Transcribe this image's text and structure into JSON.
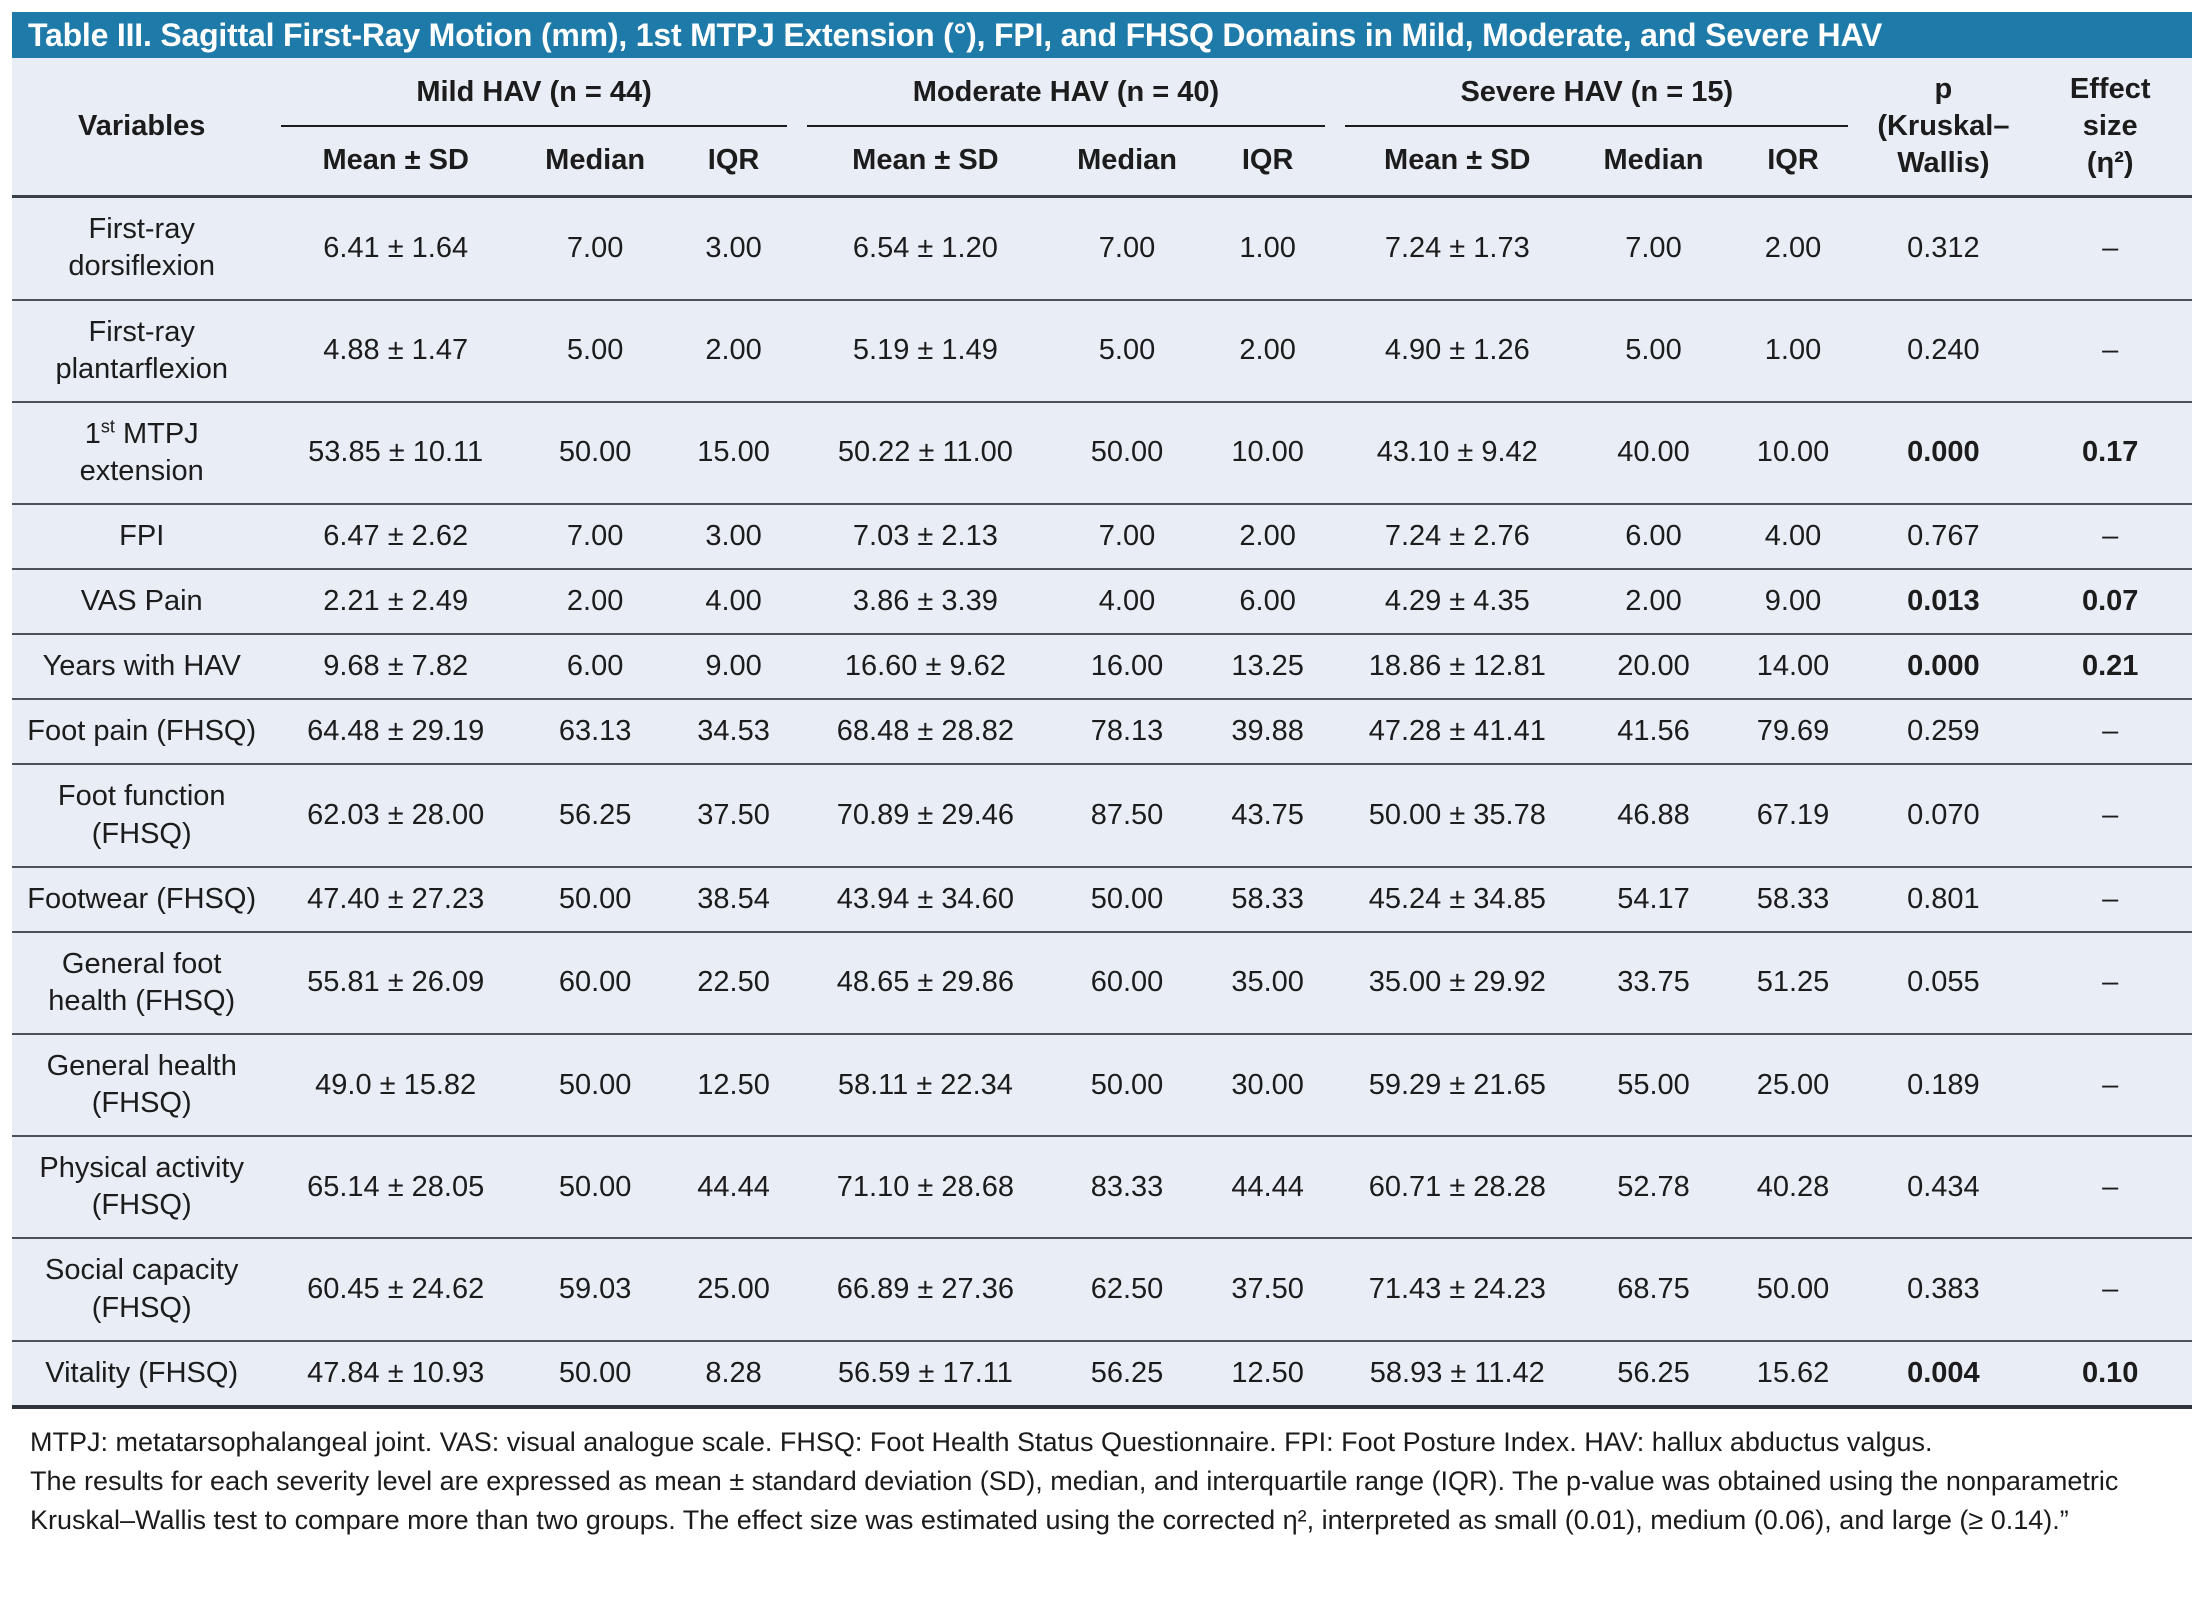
{
  "title": "Table III. Sagittal First-Ray Motion (mm), 1st MTPJ Extension (°), FPI, and FHSQ Domains in Mild, Moderate, and Severe HAV",
  "accent_color": "#1e7aa9",
  "body_background": "#e9edf6",
  "table": {
    "variables_header": "Variables",
    "groups": [
      {
        "label": "Mild HAV (n = 44)"
      },
      {
        "label": "Moderate HAV (n = 40)"
      },
      {
        "label": "Severe HAV (n = 15)"
      }
    ],
    "sub_headers": [
      "Mean ± SD",
      "Median",
      "IQR"
    ],
    "p_header": "p\n(Kruskal–\nWallis)",
    "effect_header": "Effect\nsize\n(η²)",
    "rows": [
      {
        "label": "First-ray dorsiflexion",
        "cells": [
          "6.41 ± 1.64",
          "7.00",
          "3.00",
          "6.54 ± 1.20",
          "7.00",
          "1.00",
          "7.24 ± 1.73",
          "7.00",
          "2.00",
          "0.312",
          "–"
        ],
        "significant": false
      },
      {
        "label": "First-ray plantarflexion",
        "cells": [
          "4.88 ± 1.47",
          "5.00",
          "2.00",
          "5.19 ± 1.49",
          "5.00",
          "2.00",
          "4.90 ± 1.26",
          "5.00",
          "1.00",
          "0.240",
          "–"
        ],
        "significant": false
      },
      {
        "label": "1st MTPJ extension",
        "ordinal_superscript": true,
        "cells": [
          "53.85 ± 10.11",
          "50.00",
          "15.00",
          "50.22 ± 11.00",
          "50.00",
          "10.00",
          "43.10 ± 9.42",
          "40.00",
          "10.00",
          "0.000",
          "0.17"
        ],
        "significant": true
      },
      {
        "label": "FPI",
        "cells": [
          "6.47 ± 2.62",
          "7.00",
          "3.00",
          "7.03 ± 2.13",
          "7.00",
          "2.00",
          "7.24 ± 2.76",
          "6.00",
          "4.00",
          "0.767",
          "–"
        ],
        "significant": false
      },
      {
        "label": "VAS Pain",
        "cells": [
          "2.21 ± 2.49",
          "2.00",
          "4.00",
          "3.86 ± 3.39",
          "4.00",
          "6.00",
          "4.29 ± 4.35",
          "2.00",
          "9.00",
          "0.013",
          "0.07"
        ],
        "significant": true
      },
      {
        "label": "Years with HAV",
        "cells": [
          "9.68 ± 7.82",
          "6.00",
          "9.00",
          "16.60 ± 9.62",
          "16.00",
          "13.25",
          "18.86 ± 12.81",
          "20.00",
          "14.00",
          "0.000",
          "0.21"
        ],
        "significant": true
      },
      {
        "label": "Foot pain (FHSQ)",
        "cells": [
          "64.48 ± 29.19",
          "63.13",
          "34.53",
          "68.48 ± 28.82",
          "78.13",
          "39.88",
          "47.28 ± 41.41",
          "41.56",
          "79.69",
          "0.259",
          "–"
        ],
        "significant": false
      },
      {
        "label": "Foot function (FHSQ)",
        "cells": [
          "62.03 ± 28.00",
          "56.25",
          "37.50",
          "70.89 ± 29.46",
          "87.50",
          "43.75",
          "50.00 ± 35.78",
          "46.88",
          "67.19",
          "0.070",
          "–"
        ],
        "significant": false
      },
      {
        "label": "Footwear (FHSQ)",
        "cells": [
          "47.40 ± 27.23",
          "50.00",
          "38.54",
          "43.94 ± 34.60",
          "50.00",
          "58.33",
          "45.24 ± 34.85",
          "54.17",
          "58.33",
          "0.801",
          "–"
        ],
        "significant": false
      },
      {
        "label": "General foot health (FHSQ)",
        "cells": [
          "55.81 ± 26.09",
          "60.00",
          "22.50",
          "48.65 ± 29.86",
          "60.00",
          "35.00",
          "35.00 ± 29.92",
          "33.75",
          "51.25",
          "0.055",
          "–"
        ],
        "significant": false
      },
      {
        "label": "General health (FHSQ)",
        "cells": [
          "49.0 ± 15.82",
          "50.00",
          "12.50",
          "58.11 ± 22.34",
          "50.00",
          "30.00",
          "59.29 ± 21.65",
          "55.00",
          "25.00",
          "0.189",
          "–"
        ],
        "significant": false
      },
      {
        "label": "Physical activity (FHSQ)",
        "cells": [
          "65.14 ± 28.05",
          "50.00",
          "44.44",
          "71.10 ± 28.68",
          "83.33",
          "44.44",
          "60.71 ± 28.28",
          "52.78",
          "40.28",
          "0.434",
          "–"
        ],
        "significant": false
      },
      {
        "label": "Social capacity (FHSQ)",
        "cells": [
          "60.45 ± 24.62",
          "59.03",
          "25.00",
          "66.89 ± 27.36",
          "62.50",
          "37.50",
          "71.43 ± 24.23",
          "68.75",
          "50.00",
          "0.383",
          "–"
        ],
        "significant": false
      },
      {
        "label": "Vitality (FHSQ)",
        "cells": [
          "47.84 ± 10.93",
          "50.00",
          "8.28",
          "56.59 ± 17.11",
          "56.25",
          "12.50",
          "58.93 ± 11.42",
          "56.25",
          "15.62",
          "0.004",
          "0.10"
        ],
        "significant": true
      }
    ]
  },
  "footnotes": [
    "MTPJ: metatarsophalangeal joint. VAS: visual analogue scale. FHSQ: Foot Health Status Questionnaire. FPI: Foot Posture Index. HAV: hallux abductus valgus.",
    "The results for each severity level are expressed as mean ± standard deviation (SD), median, and interquartile range (IQR). The p-value was obtained using the nonparametric",
    "Kruskal–Wallis test to compare more than two groups. The effect size was estimated using the corrected η², interpreted as small (0.01), medium (0.06), and large (≥ 0.14).”"
  ]
}
